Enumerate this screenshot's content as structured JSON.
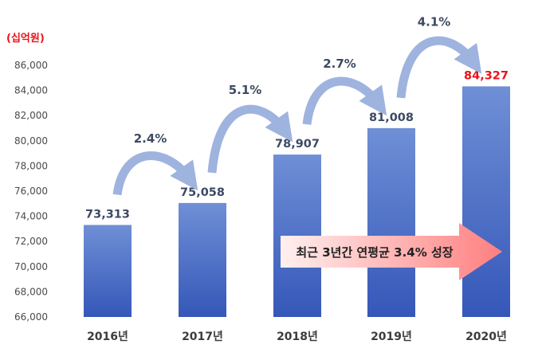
{
  "colors": {
    "bar_top": "#6f8fd6",
    "bar_bottom": "#3557b8",
    "arc": "#9fb3df",
    "highlight": "#e8131b",
    "banner": "#ff8a8a"
  },
  "chart_data": {
    "type": "bar",
    "unit_label": "(십억원)",
    "categories": [
      "2016년",
      "2017년",
      "2018년",
      "2019년",
      "2020년"
    ],
    "values": [
      73313,
      75058,
      78907,
      81008,
      84327
    ],
    "value_labels": [
      "73,313",
      "75,058",
      "78,907",
      "81,008",
      "84,327"
    ],
    "highlight_index": 4,
    "ylim": [
      66000,
      86000
    ],
    "yticks": [
      66000,
      68000,
      70000,
      72000,
      74000,
      76000,
      78000,
      80000,
      82000,
      84000,
      86000
    ],
    "ytick_labels": [
      "66,000",
      "68,000",
      "70,000",
      "72,000",
      "74,000",
      "76,000",
      "78,000",
      "80,000",
      "82,000",
      "84,000",
      "86,000"
    ],
    "growth_labels": [
      "2.4%",
      "5.1%",
      "2.7%",
      "4.1%"
    ],
    "cagr_annotation": "최근 3년간 연평균 3.4% 성장",
    "grid": false,
    "legend": "none"
  }
}
